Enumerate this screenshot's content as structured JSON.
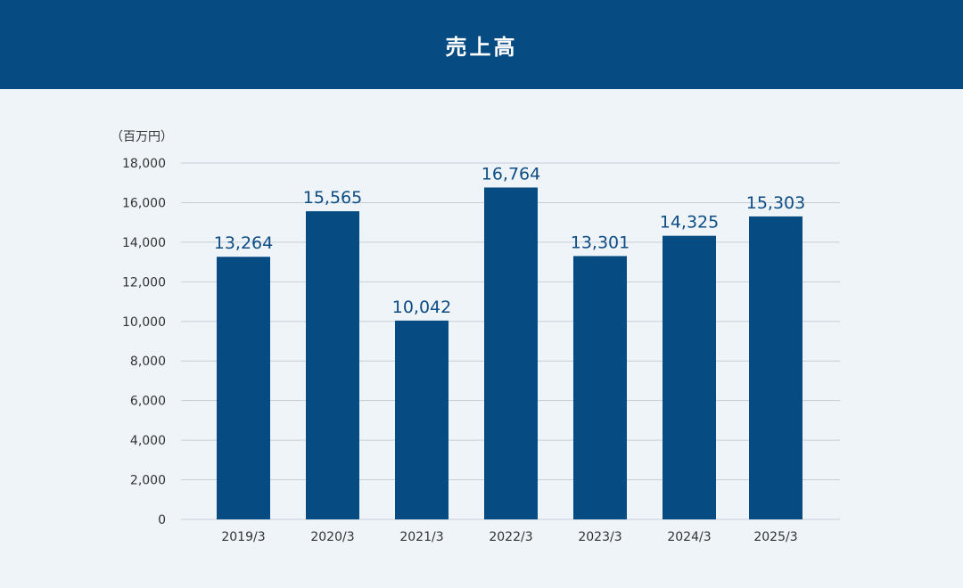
{
  "header": {
    "title": "売上高"
  },
  "colors": {
    "header_bg": "#064b82",
    "bar": "#064b82",
    "label": "#0d4c84",
    "grid": "#c5ced7",
    "background": "#eff4f8"
  },
  "chart_data": {
    "type": "bar",
    "title": "売上高",
    "unit": "（百万円）",
    "categories": [
      "2019/3",
      "2020/3",
      "2021/3",
      "2022/3",
      "2023/3",
      "2024/3",
      "2025/3"
    ],
    "values": [
      13264,
      15565,
      10042,
      16764,
      13301,
      14325,
      15303
    ],
    "value_labels": [
      "13,264",
      "15,565",
      "10,042",
      "16,764",
      "13,301",
      "14,325",
      "15,303"
    ],
    "ylim": [
      0,
      18000
    ],
    "yticks": [
      "0",
      "2,000",
      "4,000",
      "6,000",
      "8,000",
      "10,000",
      "12,000",
      "14,000",
      "16,000",
      "18,000"
    ],
    "grid": true,
    "legend": "none"
  }
}
